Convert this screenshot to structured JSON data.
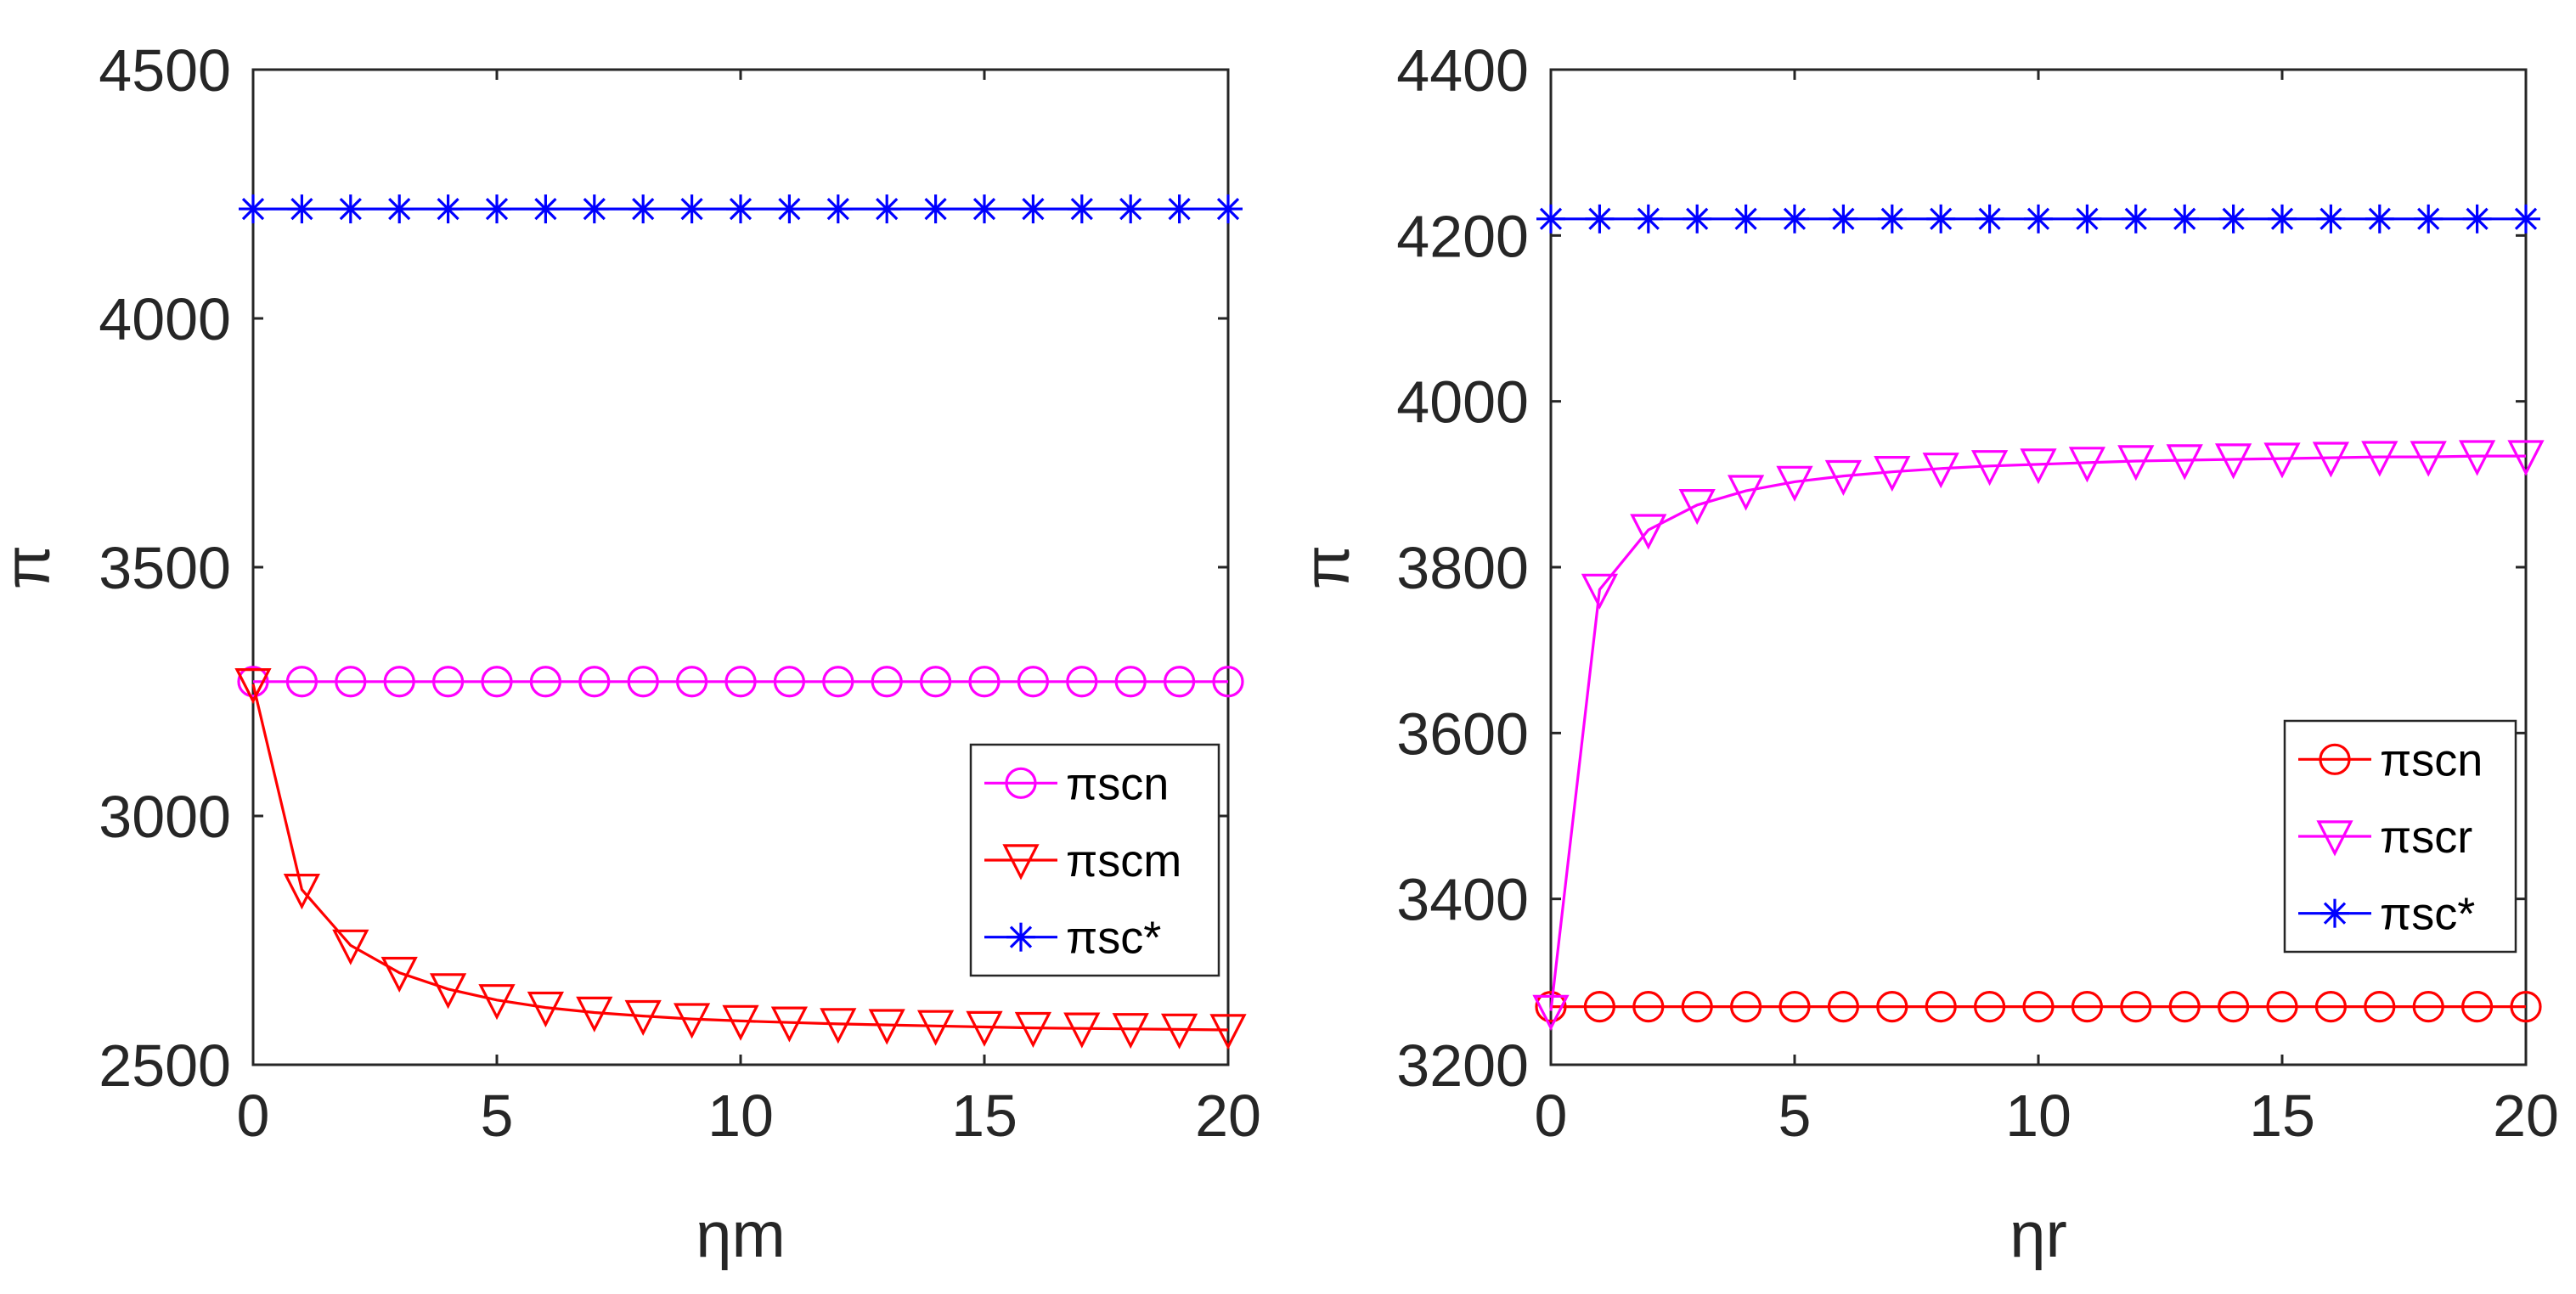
{
  "colors": {
    "magenta": "#FF00FF",
    "red": "#FF0000",
    "blue": "#0000FF",
    "axis": "#262626"
  },
  "chart_data": [
    {
      "type": "line",
      "title": "",
      "xlabel": "ηm",
      "ylabel": "π",
      "xlim": [
        0,
        20
      ],
      "ylim": [
        2500,
        4500
      ],
      "xticks": [
        0,
        5,
        10,
        15,
        20
      ],
      "yticks": [
        2500,
        3000,
        3500,
        4000,
        4500
      ],
      "xtick_labels": [
        "0",
        "5",
        "10",
        "15",
        "20"
      ],
      "ytick_labels": [
        "2500",
        "3000",
        "3500",
        "4000",
        "4500"
      ],
      "legend_position": "bottom-right",
      "x": [
        0,
        1,
        2,
        3,
        4,
        5,
        6,
        7,
        8,
        9,
        10,
        11,
        12,
        13,
        14,
        15,
        16,
        17,
        18,
        19,
        20
      ],
      "series": [
        {
          "name": "πscn",
          "color": "#FF00FF",
          "marker": "circle",
          "values": [
            3270,
            3270,
            3270,
            3270,
            3270,
            3270,
            3270,
            3270,
            3270,
            3270,
            3270,
            3270,
            3270,
            3270,
            3270,
            3270,
            3270,
            3270,
            3270,
            3270,
            3270
          ]
        },
        {
          "name": "πscm",
          "color": "#FF0000",
          "marker": "triangle-down",
          "values": [
            3265,
            2852,
            2740,
            2685,
            2652,
            2630,
            2615,
            2605,
            2598,
            2592,
            2588,
            2585,
            2582,
            2580,
            2578,
            2576,
            2574,
            2573,
            2572,
            2571,
            2570
          ]
        },
        {
          "name": "πsc*",
          "color": "#0000FF",
          "marker": "asterisk",
          "values": [
            4220,
            4220,
            4220,
            4220,
            4220,
            4220,
            4220,
            4220,
            4220,
            4220,
            4220,
            4220,
            4220,
            4220,
            4220,
            4220,
            4220,
            4220,
            4220,
            4220,
            4220
          ]
        }
      ]
    },
    {
      "type": "line",
      "title": "",
      "xlabel": "ηr",
      "ylabel": "π",
      "xlim": [
        0,
        20
      ],
      "ylim": [
        3200,
        4400
      ],
      "xticks": [
        0,
        5,
        10,
        15,
        20
      ],
      "yticks": [
        3200,
        3400,
        3600,
        3800,
        4000,
        4200,
        4400
      ],
      "xtick_labels": [
        "0",
        "5",
        "10",
        "15",
        "20"
      ],
      "ytick_labels": [
        "3200",
        "3400",
        "3600",
        "3800",
        "4000",
        "4200",
        "4400"
      ],
      "legend_position": "bottom-right",
      "x": [
        0,
        1,
        2,
        3,
        4,
        5,
        6,
        7,
        8,
        9,
        10,
        11,
        12,
        13,
        14,
        15,
        16,
        17,
        18,
        19,
        20
      ],
      "series": [
        {
          "name": "πscn",
          "color": "#FF0000",
          "marker": "circle",
          "values": [
            3270,
            3270,
            3270,
            3270,
            3270,
            3270,
            3270,
            3270,
            3270,
            3270,
            3270,
            3270,
            3270,
            3270,
            3270,
            3270,
            3270,
            3270,
            3270,
            3270,
            3270
          ]
        },
        {
          "name": "πscr",
          "color": "#FF00FF",
          "marker": "triangle-down",
          "values": [
            3265,
            3773,
            3845,
            3875,
            3892,
            3903,
            3910,
            3915,
            3919,
            3922,
            3924,
            3926,
            3928,
            3929,
            3930,
            3931,
            3932,
            3933,
            3933,
            3934,
            3934
          ]
        },
        {
          "name": "πsc*",
          "color": "#0000FF",
          "marker": "asterisk",
          "values": [
            4220,
            4220,
            4220,
            4220,
            4220,
            4220,
            4220,
            4220,
            4220,
            4220,
            4220,
            4220,
            4220,
            4220,
            4220,
            4220,
            4220,
            4220,
            4220,
            4220,
            4220
          ]
        }
      ]
    }
  ]
}
